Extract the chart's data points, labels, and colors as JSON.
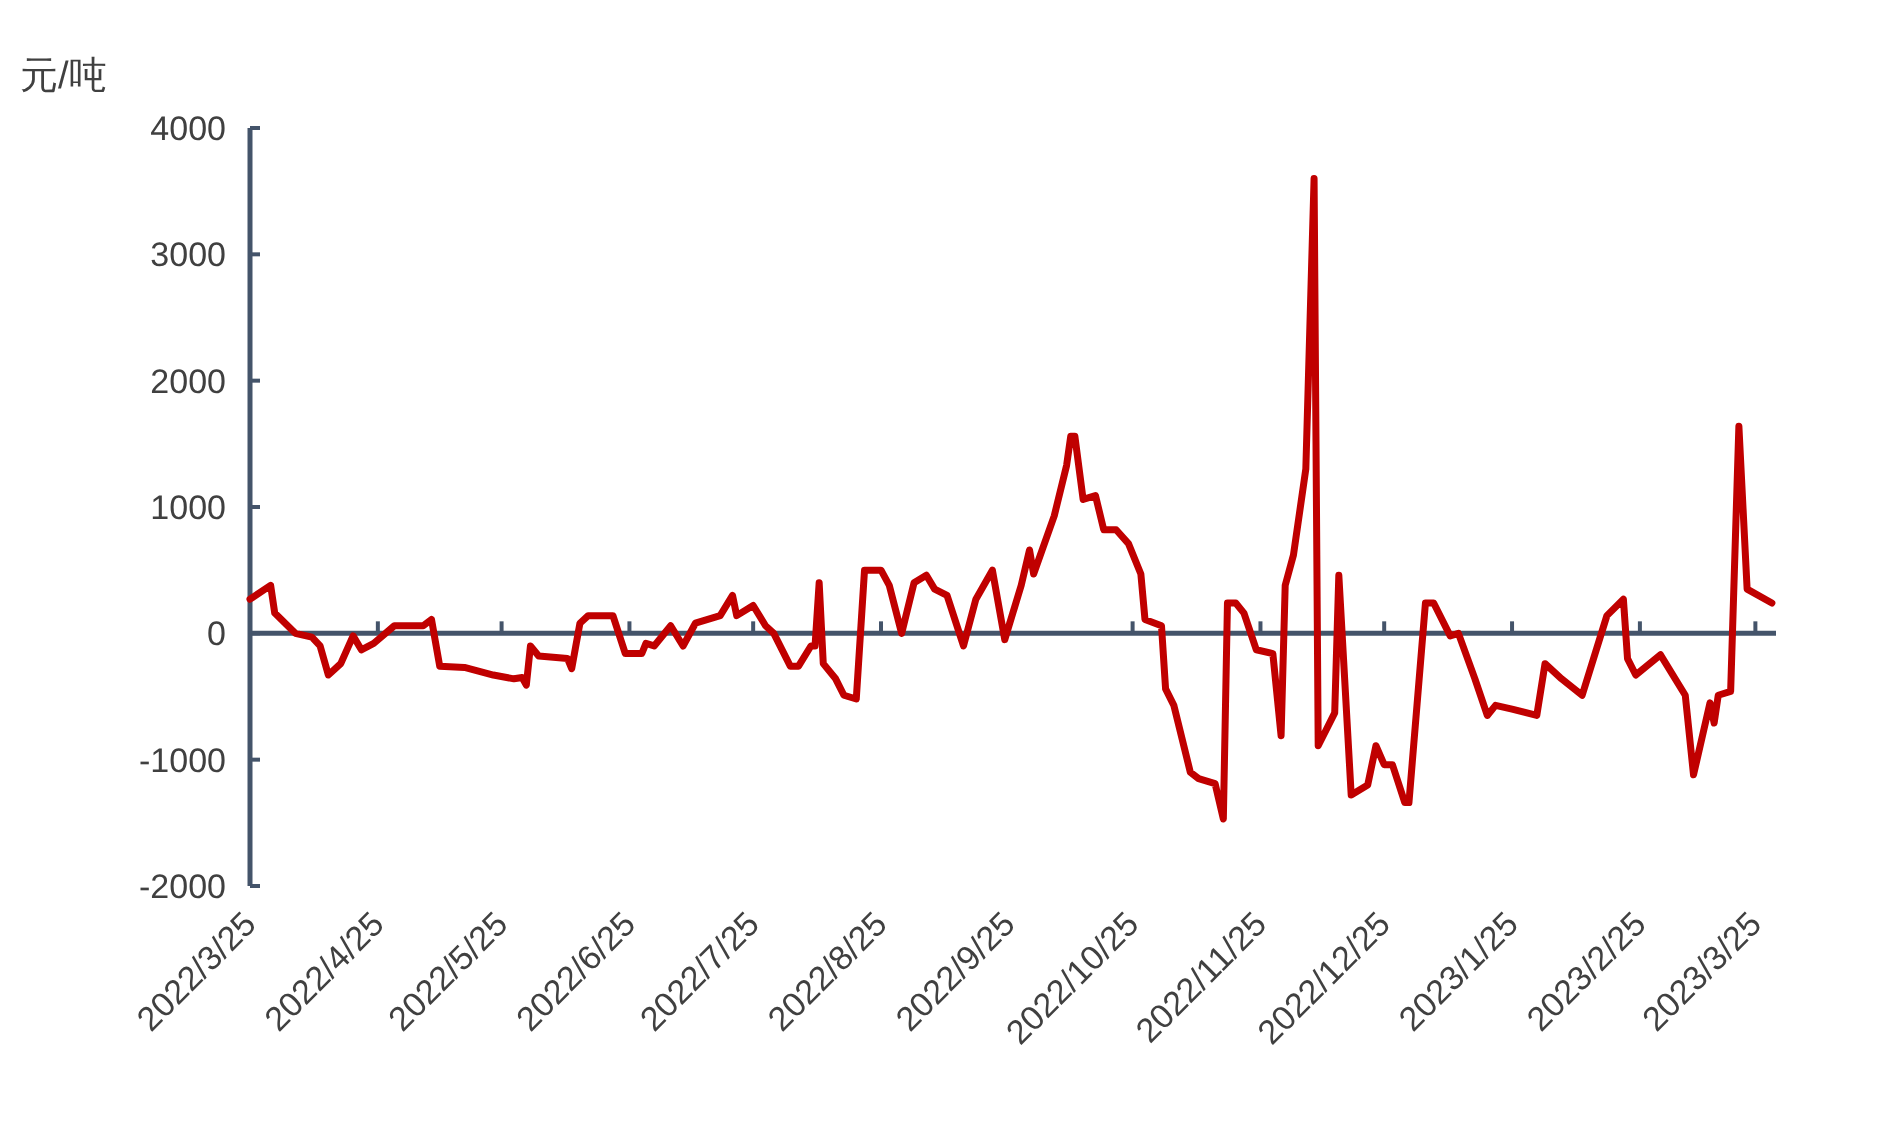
{
  "chart_data": {
    "type": "line",
    "ylabel": "元/吨",
    "x": [
      "2022-03-25",
      "2022-03-30",
      "2022-03-31",
      "2022-04-05",
      "2022-04-09",
      "2022-04-11",
      "2022-04-13",
      "2022-04-16",
      "2022-04-19",
      "2022-04-21",
      "2022-04-24",
      "2022-04-29",
      "2022-05-06",
      "2022-05-08",
      "2022-05-10",
      "2022-05-16",
      "2022-05-23",
      "2022-05-28",
      "2022-05-30",
      "2022-05-31",
      "2022-06-01",
      "2022-06-03",
      "2022-06-10",
      "2022-06-11",
      "2022-06-13",
      "2022-06-15",
      "2022-06-21",
      "2022-06-24",
      "2022-06-28",
      "2022-06-29",
      "2022-07-01",
      "2022-07-05",
      "2022-07-08",
      "2022-07-11",
      "2022-07-17",
      "2022-07-20",
      "2022-07-21",
      "2022-07-25",
      "2022-07-28",
      "2022-07-30",
      "2022-08-03",
      "2022-08-05",
      "2022-08-08",
      "2022-08-09",
      "2022-08-10",
      "2022-08-11",
      "2022-08-14",
      "2022-08-16",
      "2022-08-19",
      "2022-08-21",
      "2022-08-25",
      "2022-08-27",
      "2022-08-30",
      "2022-09-02",
      "2022-09-05",
      "2022-09-07",
      "2022-09-10",
      "2022-09-14",
      "2022-09-17",
      "2022-09-21",
      "2022-09-24",
      "2022-09-28",
      "2022-09-30",
      "2022-10-01",
      "2022-10-06",
      "2022-10-09",
      "2022-10-10",
      "2022-10-11",
      "2022-10-13",
      "2022-10-16",
      "2022-10-18",
      "2022-10-21",
      "2022-10-24",
      "2022-10-27",
      "2022-10-28",
      "2022-11-01",
      "2022-11-02",
      "2022-11-04",
      "2022-11-08",
      "2022-11-10",
      "2022-11-14",
      "2022-11-16",
      "2022-11-17",
      "2022-11-19",
      "2022-11-21",
      "2022-11-24",
      "2022-11-28",
      "2022-11-30",
      "2022-12-01",
      "2022-12-03",
      "2022-12-06",
      "2022-12-08",
      "2022-12-09",
      "2022-12-13",
      "2022-12-14",
      "2022-12-17",
      "2022-12-21",
      "2022-12-23",
      "2022-12-25",
      "2022-12-27",
      "2022-12-30",
      "2022-12-31",
      "2023-01-04",
      "2023-01-06",
      "2023-01-10",
      "2023-01-12",
      "2023-01-16",
      "2023-01-19",
      "2023-01-21",
      "2023-01-25",
      "2023-01-31",
      "2023-02-02",
      "2023-02-06",
      "2023-02-11",
      "2023-02-17",
      "2023-02-21",
      "2023-02-22",
      "2023-02-24",
      "2023-03-02",
      "2023-03-08",
      "2023-03-10",
      "2023-03-14",
      "2023-03-15",
      "2023-03-16",
      "2023-03-19",
      "2023-03-21",
      "2023-03-23",
      "2023-03-29"
    ],
    "series": [
      {
        "color": "#c00000",
        "values": [
          270,
          380,
          160,
          0,
          -30,
          -100,
          -330,
          -240,
          -20,
          -130,
          -80,
          60,
          60,
          110,
          -260,
          -270,
          -330,
          -360,
          -350,
          -410,
          -100,
          -180,
          -200,
          -280,
          80,
          140,
          140,
          -160,
          -160,
          -80,
          -100,
          60,
          -100,
          80,
          140,
          300,
          140,
          220,
          60,
          0,
          -260,
          -260,
          -100,
          -100,
          400,
          -240,
          -360,
          -490,
          -520,
          500,
          500,
          380,
          0,
          400,
          460,
          350,
          300,
          -100,
          270,
          500,
          -50,
          380,
          660,
          470,
          930,
          1330,
          1560,
          1560,
          1060,
          1090,
          820,
          820,
          710,
          470,
          110,
          60,
          -440,
          -570,
          -1100,
          -1150,
          -1190,
          -1470,
          240,
          240,
          160,
          -130,
          -160,
          -810,
          380,
          620,
          1300,
          3600,
          -890,
          -630,
          460,
          -1280,
          -1200,
          -890,
          -1040,
          -1040,
          -1340,
          -1340,
          240,
          240,
          -20,
          0,
          -360,
          -650,
          -570,
          -600,
          -650,
          -240,
          -360,
          -490,
          140,
          270,
          -200,
          -330,
          -170,
          -490,
          -1120,
          -550,
          -710,
          -490,
          -460,
          1640,
          350,
          240
        ]
      }
    ],
    "xlim": [
      "2022-03-25",
      "2023-03-30"
    ],
    "xticks": [
      {
        "value": "2022-03-25",
        "label": "2022/3/25"
      },
      {
        "value": "2022-04-25",
        "label": "2022/4/25"
      },
      {
        "value": "2022-05-25",
        "label": "2022/5/25"
      },
      {
        "value": "2022-06-25",
        "label": "2022/6/25"
      },
      {
        "value": "2022-07-25",
        "label": "2022/7/25"
      },
      {
        "value": "2022-08-25",
        "label": "2022/8/25"
      },
      {
        "value": "2022-09-25",
        "label": "2022/9/25"
      },
      {
        "value": "2022-10-25",
        "label": "2022/10/25"
      },
      {
        "value": "2022-11-25",
        "label": "2022/11/25"
      },
      {
        "value": "2022-12-25",
        "label": "2022/12/25"
      },
      {
        "value": "2023-01-25",
        "label": "2023/1/25"
      },
      {
        "value": "2023-02-25",
        "label": "2023/2/25"
      },
      {
        "value": "2023-03-25",
        "label": "2023/3/25"
      }
    ],
    "ylim": [
      -2000,
      4000
    ],
    "yticks": [
      -2000,
      -1000,
      0,
      1000,
      2000,
      3000,
      4000
    ],
    "marker": "none",
    "line_style": "solid"
  }
}
